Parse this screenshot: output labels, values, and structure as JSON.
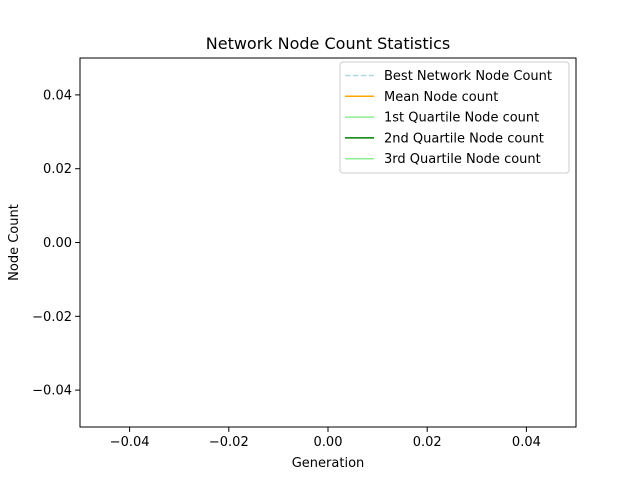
{
  "chart_data": {
    "type": "line",
    "title": "Network Node Count Statistics",
    "xlabel": "Generation",
    "ylabel": "Node Count",
    "xlim": [
      -0.05,
      0.05
    ],
    "ylim": [
      -0.05,
      0.05
    ],
    "x_ticks": [
      "−0.04",
      "−0.02",
      "0.00",
      "0.02",
      "0.04"
    ],
    "x_tick_values": [
      -0.04,
      -0.02,
      0.0,
      0.02,
      0.04
    ],
    "y_ticks": [
      "0.04",
      "0.02",
      "0.00",
      "−0.02",
      "−0.04"
    ],
    "y_tick_values": [
      0.04,
      0.02,
      0.0,
      -0.02,
      -0.04
    ],
    "grid": false,
    "legend_position": "upper right",
    "series": [
      {
        "name": "Best Network Node Count",
        "color": "#add8e6",
        "dash": "dashed",
        "x": [],
        "values": []
      },
      {
        "name": "Mean Node count",
        "color": "#ffa500",
        "dash": "solid",
        "x": [],
        "values": []
      },
      {
        "name": "1st Quartile Node count",
        "color": "#90ee90",
        "dash": "solid",
        "x": [],
        "values": []
      },
      {
        "name": "2nd Quartile Node count",
        "color": "#008000",
        "dash": "solid",
        "x": [],
        "values": []
      },
      {
        "name": "3rd Quartile Node count",
        "color": "#90ee90",
        "dash": "solid",
        "x": [],
        "values": []
      }
    ]
  }
}
